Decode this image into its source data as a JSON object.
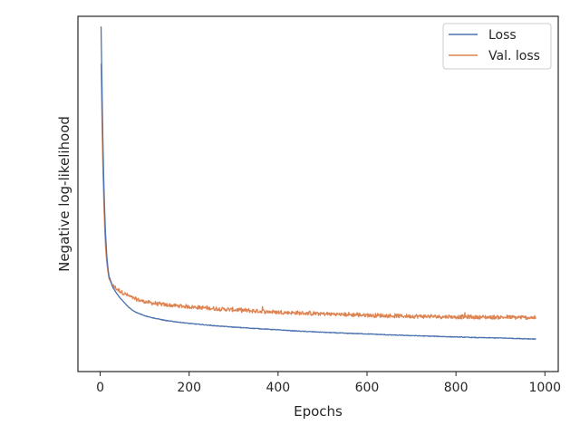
{
  "chart_data": {
    "type": "line",
    "title": "",
    "xlabel": "Epochs",
    "ylabel": "Negative log-likelihood",
    "xlim": [
      -50,
      1030
    ],
    "ylim": [
      -0.05,
      1.0
    ],
    "x_ticks": [
      0,
      200,
      400,
      600,
      800,
      1000
    ],
    "y_ticks_shown": false,
    "grid": false,
    "legend": {
      "position": "top-right"
    },
    "series": [
      {
        "name": "Loss",
        "color": "#4c72b0",
        "noise": 0.002,
        "x": [
          2,
          4,
          6,
          8,
          10,
          12,
          15,
          18,
          20,
          25,
          30,
          40,
          50,
          60,
          70,
          80,
          100,
          120,
          150,
          200,
          250,
          300,
          350,
          400,
          450,
          500,
          550,
          600,
          650,
          700,
          750,
          800,
          850,
          900,
          950,
          980
        ],
        "values": [
          0.97,
          0.8,
          0.64,
          0.52,
          0.43,
          0.36,
          0.29,
          0.25,
          0.23,
          0.21,
          0.195,
          0.175,
          0.16,
          0.145,
          0.133,
          0.125,
          0.115,
          0.108,
          0.1,
          0.092,
          0.086,
          0.081,
          0.077,
          0.073,
          0.069,
          0.066,
          0.063,
          0.061,
          0.058,
          0.056,
          0.054,
          0.052,
          0.05,
          0.049,
          0.047,
          0.046
        ]
      },
      {
        "name": "Val. loss",
        "color": "#dd8452",
        "noise": 0.008,
        "x": [
          2,
          4,
          6,
          8,
          10,
          12,
          15,
          18,
          20,
          25,
          30,
          40,
          50,
          60,
          70,
          80,
          100,
          120,
          150,
          200,
          250,
          300,
          350,
          400,
          450,
          500,
          550,
          600,
          650,
          700,
          750,
          800,
          850,
          900,
          950,
          980
        ],
        "values": [
          0.86,
          0.7,
          0.56,
          0.46,
          0.38,
          0.32,
          0.27,
          0.24,
          0.225,
          0.21,
          0.2,
          0.19,
          0.182,
          0.175,
          0.168,
          0.162,
          0.155,
          0.15,
          0.145,
          0.14,
          0.135,
          0.131,
          0.127,
          0.124,
          0.121,
          0.119,
          0.117,
          0.115,
          0.113,
          0.112,
          0.111,
          0.11,
          0.109,
          0.109,
          0.108,
          0.108
        ],
        "spikes": [
          {
            "x": 365,
            "value": 0.142
          },
          {
            "x": 578,
            "value": 0.124
          },
          {
            "x": 820,
            "value": 0.124
          }
        ]
      }
    ]
  }
}
